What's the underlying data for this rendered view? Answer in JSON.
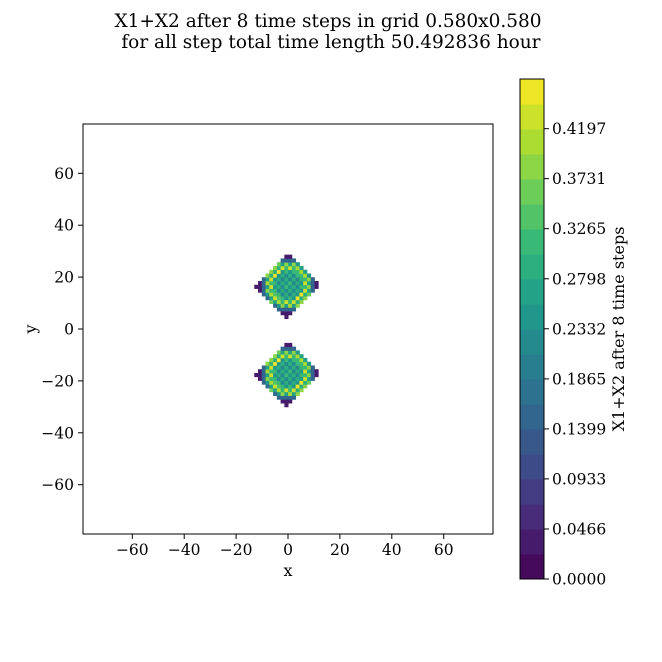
{
  "chart_data": {
    "type": "heatmap",
    "title_line1": "X1+X2 after 8 time steps in grid 0.580x0.580",
    "title_line2": " for all step total time length 50.492836 hour",
    "xlabel": "x",
    "ylabel": "y",
    "xlim": [
      -79,
      79
    ],
    "ylim": [
      -79,
      79
    ],
    "x_ticks": [
      -60,
      -40,
      -20,
      0,
      20,
      40,
      60
    ],
    "y_ticks": [
      60,
      40,
      20,
      0,
      -20,
      -40,
      -60
    ],
    "x_tick_labels": [
      "−60",
      "−40",
      "−20",
      "0",
      "20",
      "40",
      "60"
    ],
    "y_tick_labels": [
      "60",
      "40",
      "20",
      "0",
      "−20",
      "−40",
      "−60"
    ],
    "colormap": "viridis",
    "colorbar": {
      "label": "X1+X2 after 8 time steps",
      "min": 0.0,
      "max": 0.466,
      "levels": 20,
      "ticks": [
        0.0,
        0.0466,
        0.0933,
        0.1399,
        0.1865,
        0.2332,
        0.2798,
        0.3265,
        0.3731,
        0.4197
      ],
      "tick_labels": [
        "0.0000",
        "0.0466",
        "0.0933",
        "0.1399",
        "0.1865",
        "0.2332",
        "0.2798",
        "0.3265",
        "0.3731",
        "0.4197"
      ]
    },
    "blobs": [
      {
        "center": [
          0,
          17
        ],
        "half_diagonal": 13,
        "core_value": 0.27,
        "ring_value": 0.41,
        "edge_value": 0.03
      },
      {
        "center": [
          0,
          -17
        ],
        "half_diagonal": 13,
        "core_value": 0.27,
        "ring_value": 0.41,
        "edge_value": 0.03
      }
    ]
  }
}
